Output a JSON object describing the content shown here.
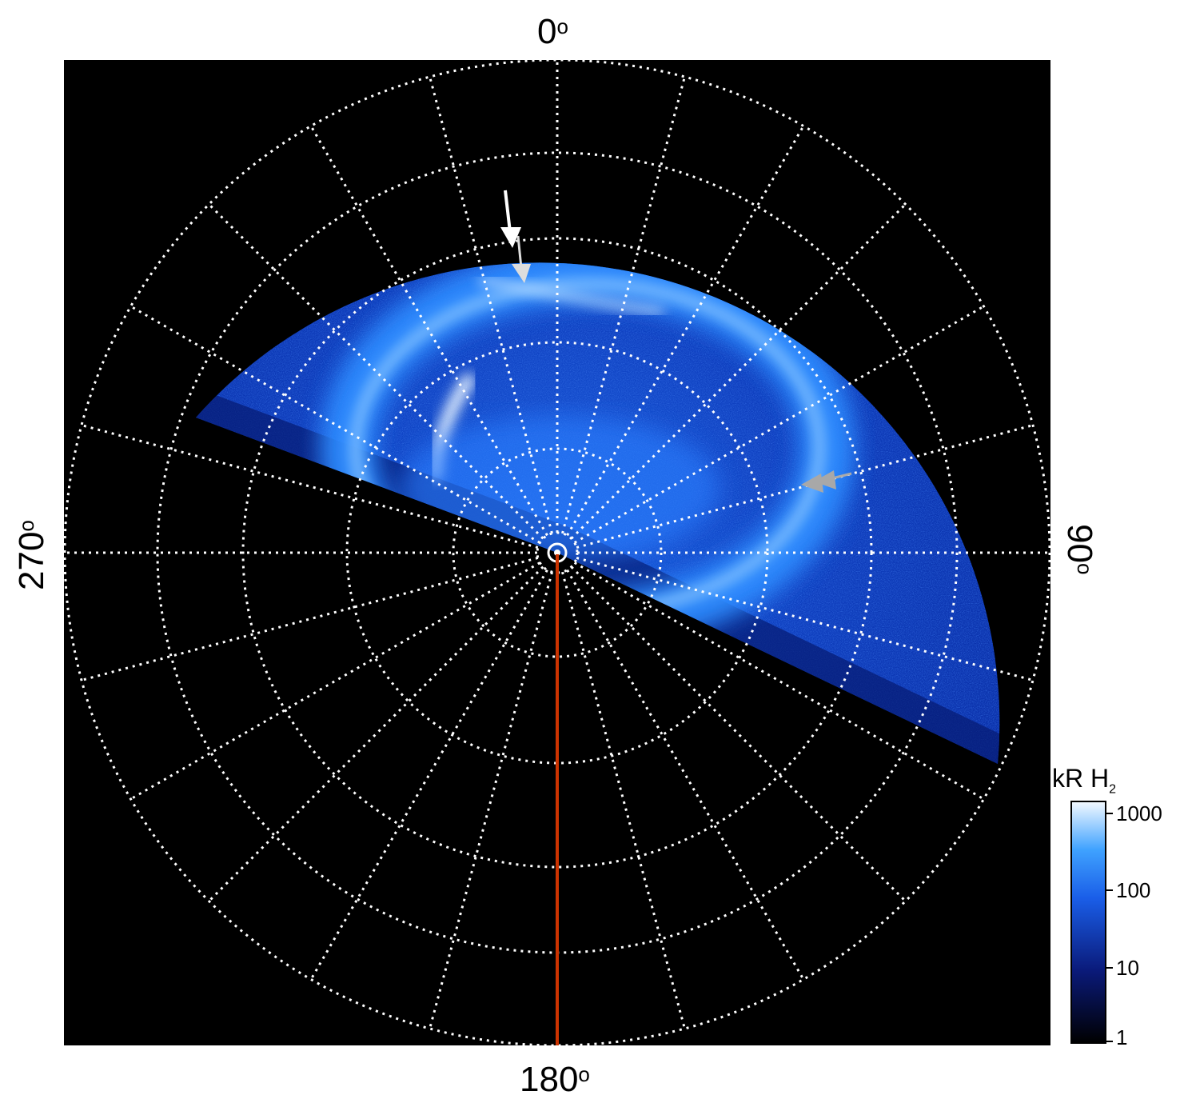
{
  "figure": {
    "axis_labels": {
      "top": "0",
      "right": "90",
      "bottom": "180",
      "left": "270",
      "degree_symbol": "o"
    },
    "colorbar": {
      "title": "kR H",
      "title_subscript": "2",
      "ticks": [
        "1000",
        "100",
        "10",
        "1"
      ],
      "scale": "log",
      "range": [
        1,
        1000
      ]
    },
    "colors": {
      "background": "#000000",
      "aurora_dim": "#0a2a9a",
      "aurora_mid": "#1e6ff0",
      "aurora_bright": "#cfe6ff",
      "grid": "#ffffff",
      "meridian_line": "#cc3300",
      "arrow_white": "#ffffff",
      "arrow_gray": "#a8a8a8"
    },
    "markers": [
      {
        "name": "white-arrow",
        "icon": "arrow-down-icon"
      },
      {
        "name": "gray-arrow-white",
        "icon": "arrow-down-icon"
      },
      {
        "name": "gray-arrow-pair",
        "icon": "arrow-left-icon"
      }
    ]
  }
}
